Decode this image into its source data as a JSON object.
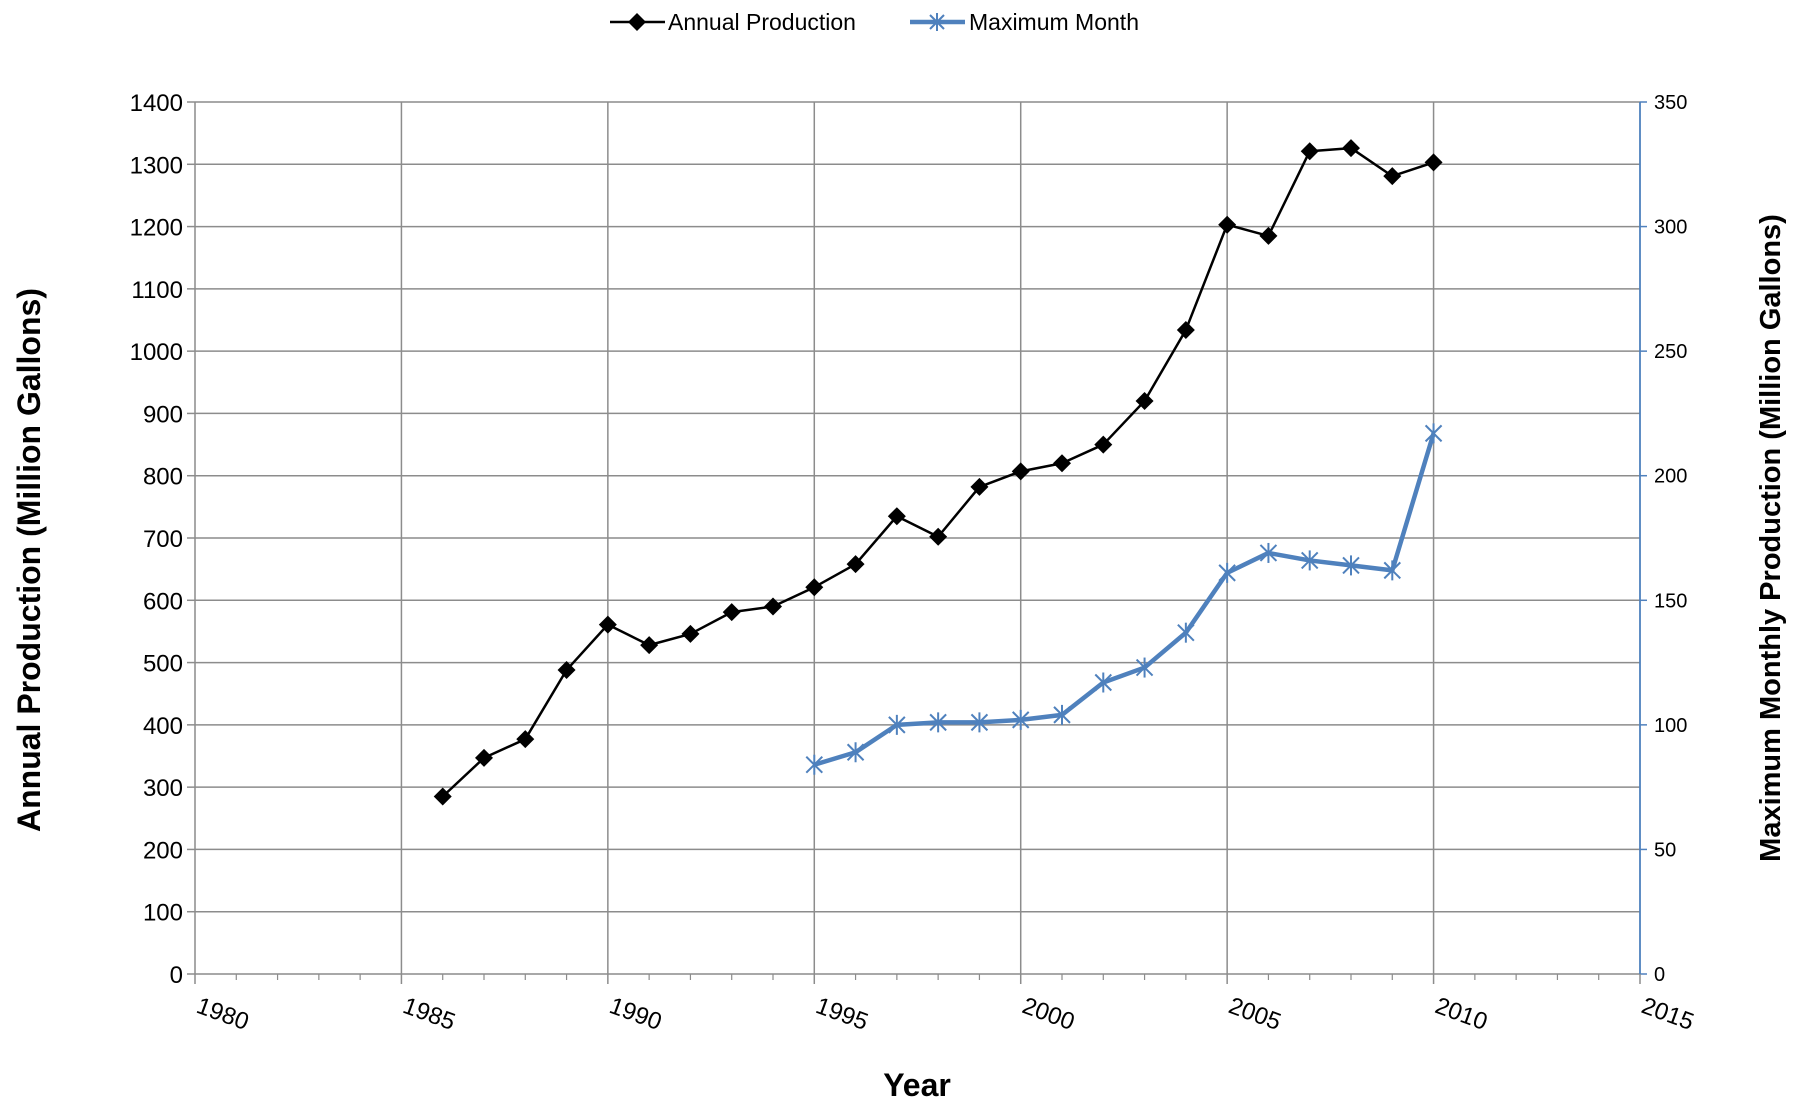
{
  "chart_data": {
    "type": "line",
    "xlabel": "Year",
    "ylabel": "Annual Production (Million Gallons)",
    "y2label": "Maximum Monthly Production (Million Gallons)",
    "xlim": [
      1980,
      2015
    ],
    "ylim": [
      0,
      1400
    ],
    "y2lim": [
      0,
      350
    ],
    "x_ticks": [
      1980,
      1985,
      1990,
      1995,
      2000,
      2005,
      2010,
      2015
    ],
    "y_ticks": [
      0,
      100,
      200,
      300,
      400,
      500,
      600,
      700,
      800,
      900,
      1000,
      1100,
      1200,
      1300,
      1400
    ],
    "y2_ticks": [
      0,
      50,
      100,
      150,
      200,
      250,
      300,
      350
    ],
    "grid": true,
    "legend_position": "top-center",
    "series": [
      {
        "name": "Annual Production",
        "axis": "left",
        "color": "#000000",
        "marker": "diamond",
        "x": [
          1986,
          1987,
          1988,
          1989,
          1990,
          1991,
          1992,
          1993,
          1994,
          1995,
          1996,
          1997,
          1998,
          1999,
          2000,
          2001,
          2002,
          2003,
          2004,
          2005,
          2006,
          2007,
          2008,
          2009,
          2010
        ],
        "values": [
          285,
          347,
          377,
          488,
          561,
          528,
          546,
          581,
          590,
          621,
          658,
          735,
          702,
          782,
          807,
          820,
          850,
          920,
          1034,
          1203,
          1185,
          1321,
          1326,
          1281,
          1303
        ]
      },
      {
        "name": "Maximum Month",
        "axis": "right",
        "color": "#4f81bd",
        "marker": "star",
        "x": [
          1995,
          1996,
          1997,
          1998,
          1999,
          2000,
          2001,
          2002,
          2003,
          2004,
          2005,
          2006,
          2007,
          2008,
          2009,
          2010
        ],
        "values": [
          84,
          89,
          100,
          101,
          101,
          102,
          104,
          117,
          123,
          137,
          161,
          169,
          166,
          164,
          162,
          217
        ]
      }
    ]
  }
}
